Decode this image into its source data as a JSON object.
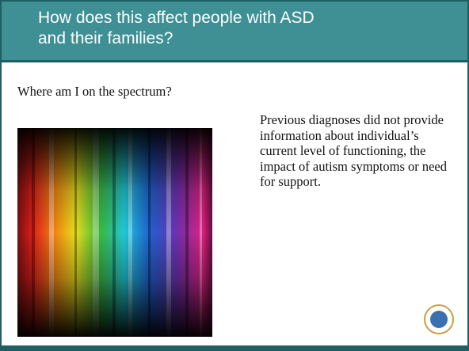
{
  "title": {
    "lines": [
      "How does this affect people with ASD",
      "and their families?"
    ]
  },
  "left": {
    "caption": "Where am I on the spectrum?"
  },
  "right": {
    "text": "Previous diagnoses did not provide information about individual’s current level of functioning, the impact of autism symptoms or need for support."
  }
}
